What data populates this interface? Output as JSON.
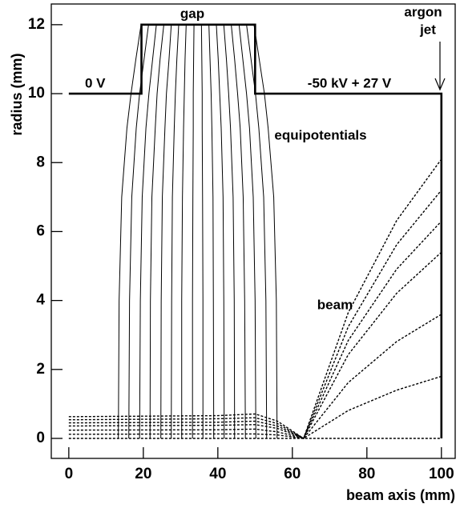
{
  "chart_data": {
    "type": "line",
    "xlabel": "beam axis (mm)",
    "ylabel": "radius (mm)",
    "xlim": [
      -4.7,
      103.7
    ],
    "ylim": [
      -0.58,
      12.6
    ],
    "xticks": [
      0,
      20,
      40,
      60,
      80,
      100
    ],
    "yticks": [
      0,
      2,
      4,
      6,
      8,
      10,
      12
    ],
    "annotations": [
      "0 V",
      "gap",
      "-50 kV + 27 V",
      "argon",
      "jet",
      "equipotentials",
      "beam"
    ],
    "series": [
      {
        "style": "electrode",
        "color": "#000000",
        "x": [
          0,
          19.5,
          19.5,
          50,
          50,
          100,
          100
        ],
        "values": [
          10,
          10,
          12,
          12,
          10,
          10,
          0
        ]
      },
      {
        "style": "equipotential",
        "color": "#000000",
        "x": [
          13.3,
          13.5,
          14.2,
          15.6,
          16.7,
          18.0,
          19.4
        ],
        "values": [
          0,
          4,
          7,
          9,
          10,
          11,
          12
        ]
      },
      {
        "style": "equipotential",
        "color": "#000000",
        "x": [
          16.1,
          16.3,
          16.9,
          18.1,
          19.0,
          20.2,
          21.4
        ],
        "values": [
          0,
          4,
          7,
          9,
          10,
          11,
          12
        ]
      },
      {
        "style": "equipotential",
        "color": "#000000",
        "x": [
          19.0,
          19.2,
          19.7,
          20.7,
          21.5,
          22.5,
          23.5
        ],
        "values": [
          0,
          4,
          7,
          9,
          10,
          11,
          12
        ]
      },
      {
        "style": "equipotential",
        "color": "#000000",
        "x": [
          21.8,
          21.9,
          22.3,
          23.2,
          23.7,
          24.5,
          25.5
        ],
        "values": [
          0,
          4,
          7,
          9,
          10,
          11,
          12
        ]
      },
      {
        "style": "equipotential",
        "color": "#000000",
        "x": [
          24.7,
          24.8,
          25.1,
          25.8,
          26.2,
          26.9,
          27.5
        ],
        "values": [
          0,
          4,
          7,
          9,
          10,
          11,
          12
        ]
      },
      {
        "style": "equipotential",
        "color": "#000000",
        "x": [
          27.5,
          27.6,
          27.8,
          28.3,
          28.6,
          29.0,
          29.5
        ],
        "values": [
          0,
          4,
          7,
          9,
          10,
          11,
          12
        ]
      },
      {
        "style": "equipotential",
        "color": "#000000",
        "x": [
          30.3,
          30.3,
          30.5,
          30.8,
          31.0,
          31.2,
          31.5
        ],
        "values": [
          0,
          4,
          7,
          9,
          10,
          11,
          12
        ]
      },
      {
        "style": "equipotential",
        "color": "#000000",
        "x": [
          33.2,
          33.2,
          33.3,
          33.4,
          33.4,
          33.5,
          33.6
        ],
        "values": [
          0,
          4,
          7,
          9,
          10,
          11,
          12
        ]
      },
      {
        "style": "equipotential",
        "color": "#000000",
        "x": [
          36.0,
          36.0,
          35.9,
          35.8,
          35.8,
          35.7,
          35.6
        ],
        "values": [
          0,
          4,
          7,
          9,
          10,
          11,
          12
        ]
      },
      {
        "style": "equipotential",
        "color": "#000000",
        "x": [
          38.9,
          38.8,
          38.7,
          38.4,
          38.2,
          37.9,
          37.6
        ],
        "values": [
          0,
          4,
          7,
          9,
          10,
          11,
          12
        ]
      },
      {
        "style": "equipotential",
        "color": "#000000",
        "x": [
          41.7,
          41.6,
          41.4,
          40.9,
          40.5,
          40.1,
          39.6
        ],
        "values": [
          0,
          4,
          7,
          9,
          10,
          11,
          12
        ]
      },
      {
        "style": "equipotential",
        "color": "#000000",
        "x": [
          44.5,
          44.4,
          44.1,
          43.4,
          42.9,
          42.3,
          41.6
        ],
        "values": [
          0,
          4,
          7,
          9,
          10,
          11,
          12
        ]
      },
      {
        "style": "equipotential",
        "color": "#000000",
        "x": [
          47.4,
          47.2,
          46.8,
          46.0,
          45.3,
          44.5,
          43.6
        ],
        "values": [
          0,
          4,
          7,
          9,
          10,
          11,
          12
        ]
      },
      {
        "style": "equipotential",
        "color": "#000000",
        "x": [
          50.2,
          50.0,
          49.5,
          48.5,
          47.7,
          46.7,
          45.7
        ],
        "values": [
          0,
          4,
          7,
          9,
          10,
          11,
          12
        ]
      },
      {
        "style": "equipotential",
        "color": "#000000",
        "x": [
          53.1,
          52.9,
          52.3,
          51.0,
          50.1,
          48.9,
          47.7
        ],
        "values": [
          0,
          4,
          7,
          9,
          10,
          11,
          12
        ]
      },
      {
        "style": "equipotential",
        "color": "#000000",
        "x": [
          55.9,
          55.7,
          55.0,
          53.5,
          52.5,
          51.1,
          49.7
        ],
        "values": [
          0,
          4,
          7,
          9,
          10,
          11,
          12
        ]
      },
      {
        "style": "beam",
        "color": "#000000",
        "x": [
          0,
          40,
          50,
          56,
          63,
          75,
          88,
          100
        ],
        "values": [
          0.63,
          0.66,
          0.71,
          0.5,
          0,
          3.65,
          6.32,
          8.1
        ]
      },
      {
        "style": "beam",
        "color": "#000000",
        "x": [
          0,
          40,
          50,
          56,
          63,
          75,
          88,
          100
        ],
        "values": [
          0.54,
          0.57,
          0.6,
          0.43,
          0,
          3.24,
          5.62,
          7.2
        ]
      },
      {
        "style": "beam",
        "color": "#000000",
        "x": [
          0,
          40,
          50,
          56,
          63,
          75,
          88,
          100
        ],
        "values": [
          0.45,
          0.47,
          0.5,
          0.36,
          0,
          2.84,
          4.91,
          6.3
        ]
      },
      {
        "style": "beam",
        "color": "#000000",
        "x": [
          0,
          40,
          50,
          56,
          63,
          75,
          88,
          100
        ],
        "values": [
          0.36,
          0.38,
          0.4,
          0.29,
          0,
          2.43,
          4.21,
          5.4
        ]
      },
      {
        "style": "beam",
        "color": "#000000",
        "x": [
          0,
          40,
          50,
          56,
          63,
          75,
          88,
          100
        ],
        "values": [
          0.24,
          0.25,
          0.27,
          0.19,
          0,
          1.62,
          2.81,
          3.6
        ]
      },
      {
        "style": "beam",
        "color": "#000000",
        "x": [
          0,
          40,
          50,
          56,
          63,
          75,
          88,
          100
        ],
        "values": [
          0.12,
          0.13,
          0.13,
          0.1,
          0,
          0.81,
          1.4,
          1.8
        ]
      },
      {
        "style": "beam",
        "color": "#000000",
        "x": [
          0,
          40,
          50,
          56,
          63,
          75,
          88,
          100
        ],
        "values": [
          0,
          0,
          0,
          0,
          0,
          0,
          0,
          0
        ]
      }
    ]
  }
}
